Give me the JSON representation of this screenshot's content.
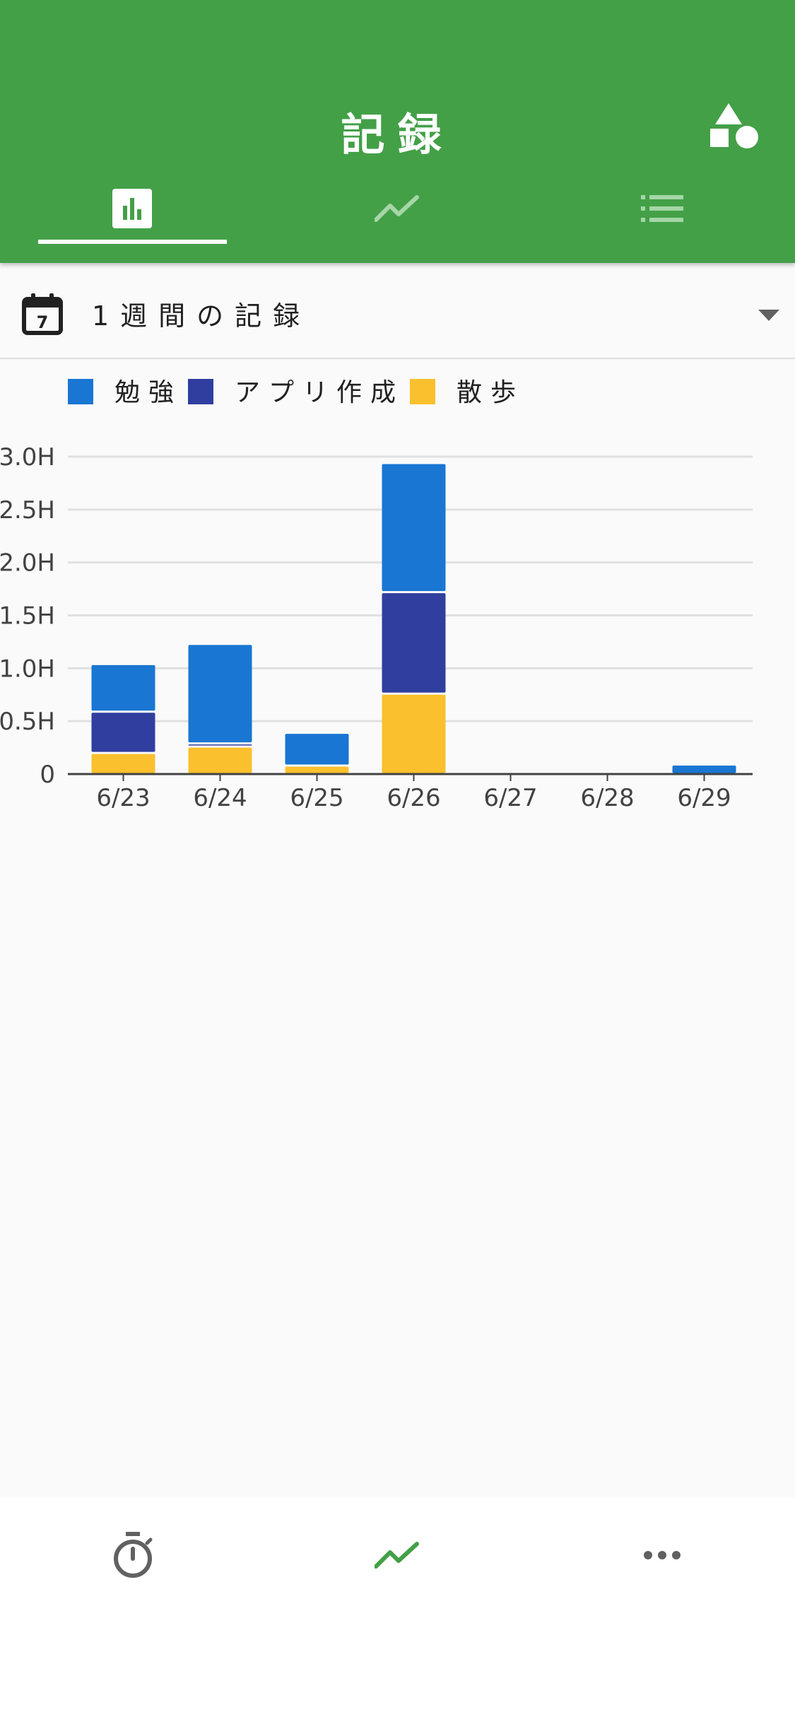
{
  "appbar": {
    "title": "記録",
    "action_icon": "shapes-icon",
    "color": "#43a047"
  },
  "tabs": [
    {
      "icon": "bar-chart-icon",
      "selected": true
    },
    {
      "icon": "trending-up-icon",
      "selected": false
    },
    {
      "icon": "list-icon",
      "selected": false
    }
  ],
  "range": {
    "calendar_day": "7",
    "label": "1週間の記録",
    "icon": "calendar-icon"
  },
  "chart_data": {
    "type": "bar",
    "stacked": true,
    "categories": [
      "6/23",
      "6/24",
      "6/25",
      "6/26",
      "6/27",
      "6/28",
      "6/29"
    ],
    "series": [
      {
        "name": "散歩",
        "color": "#fbc02d",
        "values": [
          0.2,
          0.26,
          0.08,
          0.76,
          0,
          0,
          0
        ]
      },
      {
        "name": "アプリ作成",
        "color": "#303f9f",
        "values": [
          0.39,
          0.03,
          0,
          0.96,
          0,
          0,
          0
        ]
      },
      {
        "name": "勉強",
        "color": "#1976d2",
        "values": [
          0.45,
          0.94,
          0.31,
          1.22,
          0,
          0,
          0.09
        ]
      }
    ],
    "legend_order": [
      "勉強",
      "アプリ作成",
      "散歩"
    ],
    "legend_position": "top-left",
    "yticks": [
      "0",
      "0.5H",
      "1.0H",
      "1.5H",
      "2.0H",
      "2.5H",
      "3.0H"
    ],
    "ylim": [
      0,
      3
    ],
    "grid": true
  },
  "bottom_nav": [
    {
      "icon": "stopwatch-icon",
      "selected": false
    },
    {
      "icon": "trending-up-icon",
      "selected": true
    },
    {
      "icon": "more-horiz-icon",
      "selected": false
    }
  ],
  "colors": {
    "accent": "#43a047",
    "tab_inactive": "#a5d6a7",
    "nav_inactive": "#616161"
  }
}
